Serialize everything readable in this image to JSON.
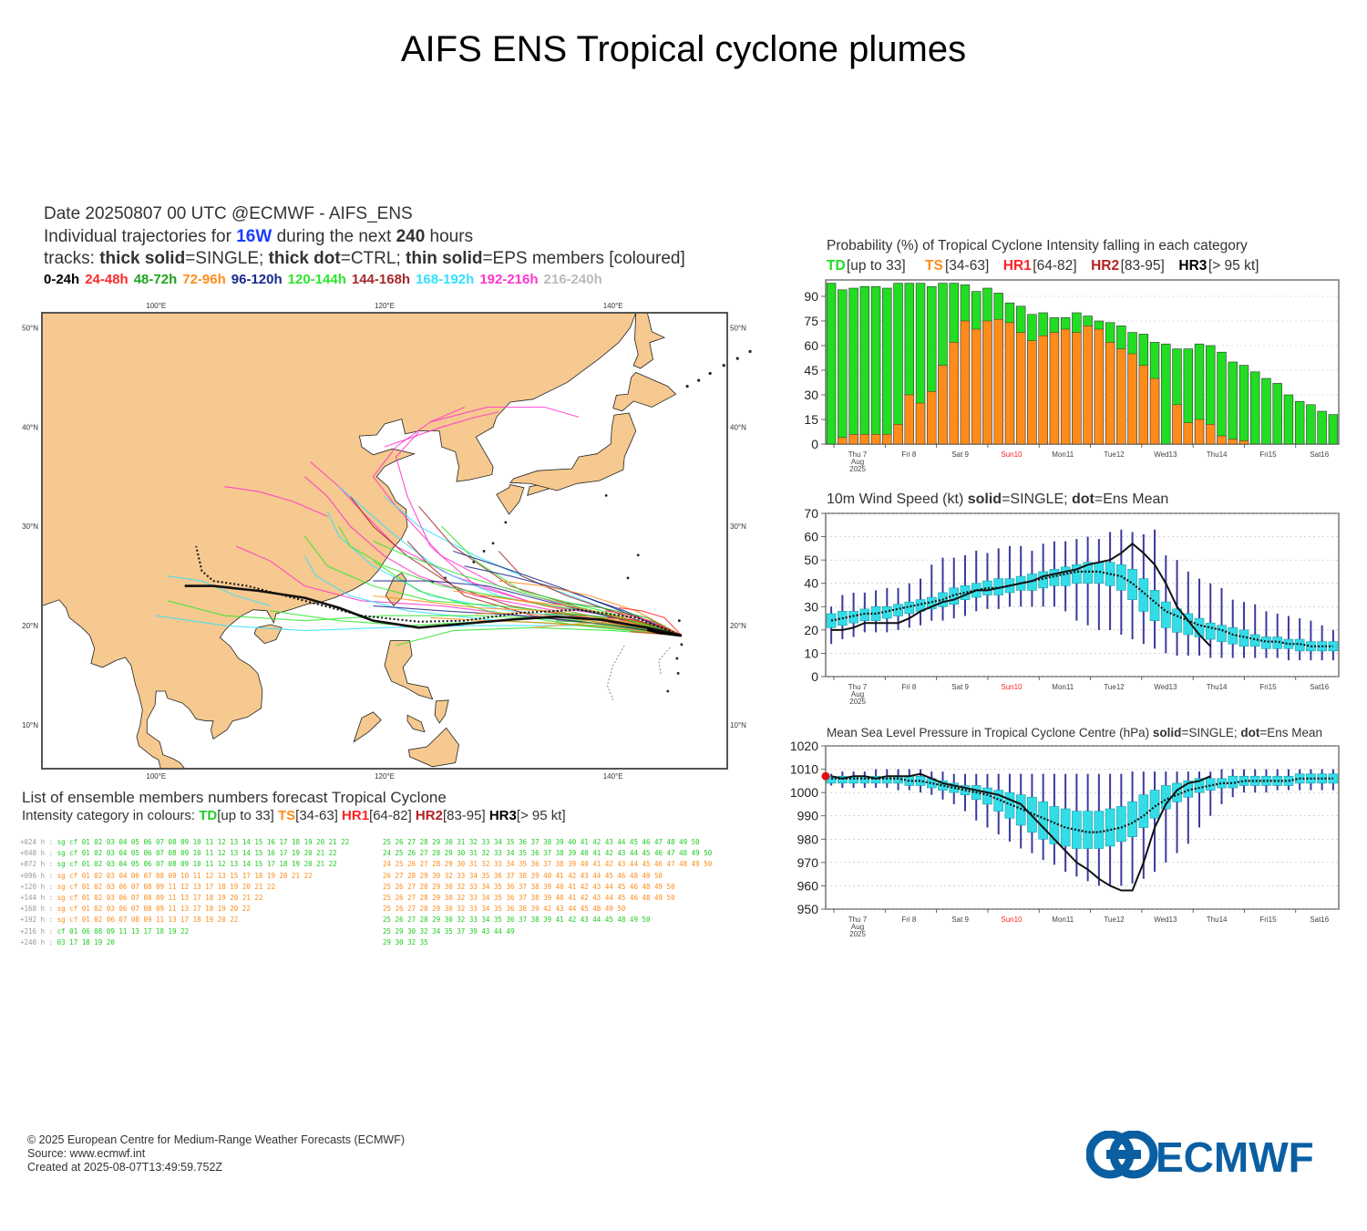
{
  "title": "AIFS ENS Tropical cyclone plumes",
  "map_header": {
    "line1": "Date 20250807 00 UTC   @ECMWF - AIFS_ENS",
    "line2_pre": "Individual trajectories for",
    "storm": "16W",
    "line2_mid": "during the next",
    "hours": "240",
    "line2_post": "hours",
    "line3_a": "tracks:",
    "line3_b": "thick solid",
    "line3_c": "=SINGLE;",
    "line3_d": "thick dot",
    "line3_e": "=CTRL;",
    "line3_f": "thin solid",
    "line3_g": "=EPS members [coloured]",
    "time_legend": [
      {
        "label": "0-24h",
        "color": "#000000"
      },
      {
        "label": "24-48h",
        "color": "#ff2a2a"
      },
      {
        "label": "48-72h",
        "color": "#1fa31f"
      },
      {
        "label": "72-96h",
        "color": "#ff8c1a"
      },
      {
        "label": "96-120h",
        "color": "#1a2a8c"
      },
      {
        "label": "120-144h",
        "color": "#2ee62e"
      },
      {
        "label": "144-168h",
        "color": "#a52a2a"
      },
      {
        "label": "168-192h",
        "color": "#33e0ff"
      },
      {
        "label": "192-216h",
        "color": "#ff33cc"
      },
      {
        "label": "216-240h",
        "color": "#bbbbbb"
      }
    ]
  },
  "map": {
    "lon_labels": [
      "100°E",
      "120°E",
      "140°E"
    ],
    "lat_labels": [
      "50°N",
      "40°N",
      "30°N",
      "20°N",
      "10°N"
    ],
    "land_color": "#f5c98f",
    "sea_color": "#ffffff"
  },
  "members_list": {
    "title": "List of ensemble members numbers forecast Tropical Cyclone",
    "legend_pre": "Intensity category in colours:",
    "categories": [
      {
        "code": "TD",
        "range": "[up to 33]",
        "color": "#22cc22"
      },
      {
        "code": "TS",
        "range": "[34-63]",
        "color": "#ff8c1a"
      },
      {
        "code": "HR1",
        "range": "[64-82]",
        "color": "#ff2222"
      },
      {
        "code": "HR2",
        "range": "[83-95]",
        "color": "#b22222"
      },
      {
        "code": "HR3",
        "range": "[> 95 kt]",
        "color": "#000000"
      }
    ],
    "rows": [
      {
        "step": "+024 h :",
        "a": "sg cf 01 02 03 04 05 06 07 08 09 10 11 12 13 14 15 16 17 18 19 20 21 22",
        "b": "25 26 27 28 29 30 31 32 33 34 35 36 37 38 39 40 41 42 43 44 45 46 47 48 49 50",
        "ca": "#22cc22",
        "cb": "#22cc22"
      },
      {
        "step": "+048 h :",
        "a": "sg cf 01 02 03 04 05 06 07 08 09 10 11 12 13 14 15 16 17    19 20 21 22",
        "b": "24 25 26 27 28 29 30 31 32 33 34 35 36 37 38 39 40 41 42 43 44 45 46 47 48 49 50",
        "ca": "#22cc22",
        "cb": "#22cc22"
      },
      {
        "step": "+072 h :",
        "a": "sg cf 01 02 03 04 05 06 07 08 09 10 11 12 13 14 15    17 18 19 20 21 22",
        "b": "24 25 26 27 28 29 30 31 32 33 34 35 36 37 38 39 40 41 42 43 44 45 46 47 48 49 50",
        "ca": "#22cc22",
        "cb": "#ff8c1a"
      },
      {
        "step": "+096 h :",
        "a": "sg cf 01 02 03 04    06 07 08 09 10 11 12 13    15    17 18 19 20 21 22",
        "b": "26 27 28 29 30    32 33 34 35 36 37 38 39 40 41 42 43 44 45 46    48 49 50",
        "ca": "#ff8c1a",
        "cb": "#ff8c1a"
      },
      {
        "step": "+120 h :",
        "a": "sg cf 01 02 03    06 07 08 09    11 12 13       17 18 19 20 21 22",
        "b": "25 26 27 28 29 30    32 33 34 35 36 37 38 39 40 41 42 43 44 45 46    48 49 50",
        "ca": "#ff8c1a",
        "cb": "#ff8c1a"
      },
      {
        "step": "+144 h :",
        "a": "sg cf 01 02 03    06 07 08 09    11    13       17 18 19 20 21 22",
        "b": "25 26 27 28 29 30    32 33 34 35 36 37 38 39 40 41 42 43 44 45 46    48 49 50",
        "ca": "#ff8c1a",
        "cb": "#ff8c1a"
      },
      {
        "step": "+168 h :",
        "a": "sg cf 01 02 03    06 07 08 09    11    13       17 18 19 20    22",
        "b": "25 26 27 28 29 30    32 33 34 35 36    38 39       42 43 44 45    48 49 50",
        "ca": "#ff8c1a",
        "cb": "#ff8c1a"
      },
      {
        "step": "+192 h :",
        "a": "sg cf 01 02       06 07 08 09    11    13       17 18 19 20    22",
        "b": "25 26 27 28 29 30    32 33 34 35 36 37 38 39    41 42 43 44 45       48 49 50",
        "ca": "#ff8c1a",
        "cb": "#22cc22"
      },
      {
        "step": "+216 h :",
        "a": "   cf 01          06    08 09    11    13       17 18 19       22",
        "b": "25          29 30    32    34 35    37    39       43 44             49",
        "ca": "#22cc22",
        "cb": "#22cc22"
      },
      {
        "step": "+240 h :",
        "a": "         03                                     17 18 19 20",
        "b": "            29 30    32       35",
        "ca": "#22cc22",
        "cb": "#22cc22"
      }
    ]
  },
  "days": [
    "Thu 7\nAug\n2025",
    "Fri 8",
    "Sat 9",
    "Sun10",
    "Mon11",
    "Tue12",
    "Wed13",
    "Thu14",
    "Fri15",
    "Sat16"
  ],
  "chart_data": [
    {
      "type": "bar",
      "title": "Probability (%) of Tropical Cyclone Intensity falling in each category",
      "legend": [
        {
          "code": "TD",
          "range": "[up to 33]",
          "color": "#22dd22"
        },
        {
          "code": "TS",
          "range": "[34-63]",
          "color": "#ff8c1a"
        },
        {
          "code": "HR1",
          "range": "[64-82]",
          "color": "#ff2222"
        },
        {
          "code": "HR2",
          "range": "[83-95]",
          "color": "#b22222"
        },
        {
          "code": "HR3",
          "range": "[> 95 kt]",
          "color": "#000000"
        }
      ],
      "ylim": [
        0,
        100
      ],
      "yticks": [
        0,
        15,
        30,
        45,
        60,
        75,
        90
      ],
      "x_step_hours": 6,
      "series": [
        {
          "name": "TD",
          "color": "#22dd22",
          "values": [
            98,
            94,
            95,
            96,
            96,
            95,
            98,
            98,
            98,
            96,
            98,
            98,
            97,
            93,
            95,
            92,
            86,
            84,
            79,
            80,
            77,
            77,
            80,
            78,
            75,
            74,
            72,
            68,
            67,
            62,
            61,
            58,
            58,
            61,
            60,
            56,
            50,
            48,
            44,
            40,
            37,
            30,
            26,
            24,
            20,
            18
          ]
        },
        {
          "name": "TS",
          "color": "#ff8c1a",
          "values": [
            0,
            4,
            6,
            6,
            6,
            6,
            12,
            30,
            25,
            32,
            48,
            62,
            75,
            70,
            75,
            76,
            74,
            68,
            63,
            66,
            68,
            70,
            68,
            72,
            70,
            62,
            58,
            55,
            48,
            40,
            0,
            24,
            13,
            15,
            12,
            5,
            3,
            2,
            0,
            0,
            0,
            0,
            0,
            0,
            0,
            0
          ]
        }
      ]
    },
    {
      "type": "line",
      "title": "10m Wind Speed (kt) solid=SINGLE; dot=Ens Mean",
      "ylabel": "",
      "ylim": [
        0,
        70
      ],
      "yticks": [
        0,
        10,
        20,
        30,
        40,
        50,
        60,
        70
      ],
      "x_step_hours": 6,
      "series": [
        {
          "name": "SINGLE",
          "values": [
            20,
            20,
            21,
            23,
            23,
            23,
            23,
            25,
            28,
            30,
            32,
            33,
            35,
            37,
            37,
            38,
            39,
            40,
            41,
            43,
            44,
            45,
            46,
            48,
            49,
            50,
            53,
            57,
            53,
            48,
            40,
            30,
            24,
            18,
            13
          ]
        },
        {
          "name": "Ens Mean",
          "values": [
            24,
            25,
            26,
            27,
            27,
            28,
            29,
            30,
            31,
            32,
            33,
            35,
            36,
            37,
            38,
            38,
            39,
            40,
            41,
            42,
            43,
            44,
            45,
            45,
            45,
            44,
            43,
            40,
            36,
            32,
            28,
            26,
            24,
            22,
            21,
            20,
            18,
            17,
            16,
            15,
            15,
            14,
            14,
            13,
            13,
            13
          ]
        }
      ],
      "box_q1": [
        21,
        22,
        23,
        24,
        24,
        25,
        26,
        27,
        28,
        29,
        30,
        31,
        33,
        34,
        35,
        35,
        36,
        37,
        37,
        38,
        39,
        39,
        40,
        40,
        40,
        39,
        37,
        33,
        28,
        24,
        21,
        19,
        18,
        17,
        16,
        15,
        14,
        13,
        13,
        12,
        12,
        12,
        11,
        11,
        11,
        11
      ],
      "box_q3": [
        27,
        28,
        28,
        29,
        30,
        30,
        31,
        32,
        33,
        34,
        36,
        38,
        39,
        40,
        41,
        42,
        42,
        43,
        44,
        45,
        46,
        47,
        48,
        49,
        49,
        49,
        48,
        46,
        42,
        37,
        32,
        29,
        27,
        25,
        23,
        22,
        21,
        20,
        18,
        17,
        17,
        16,
        16,
        15,
        15,
        15
      ],
      "whisk_min": [
        14,
        16,
        17,
        19,
        19,
        19,
        20,
        21,
        22,
        24,
        24,
        25,
        26,
        28,
        29,
        29,
        30,
        30,
        30,
        30,
        30,
        28,
        24,
        22,
        20,
        20,
        18,
        16,
        14,
        12,
        10,
        9,
        9,
        9,
        8,
        8,
        8,
        8,
        8,
        8,
        8,
        7,
        7,
        7,
        7,
        7
      ],
      "whisk_max": [
        30,
        35,
        36,
        36,
        37,
        38,
        38,
        40,
        42,
        48,
        51,
        51,
        52,
        54,
        53,
        55,
        56,
        56,
        54,
        57,
        58,
        58,
        59,
        60,
        59,
        62,
        63,
        62,
        61,
        63,
        52,
        50,
        45,
        42,
        40,
        38,
        33,
        32,
        31,
        28,
        27,
        26,
        25,
        24,
        22,
        20
      ]
    },
    {
      "type": "line",
      "title": "Mean Sea Level Pressure in Tropical Cyclone Centre (hPa) solid=SINGLE; dot=Ens Mean",
      "ylim": [
        950,
        1020
      ],
      "yticks": [
        950,
        960,
        970,
        980,
        990,
        1000,
        1010,
        1020
      ],
      "x_step_hours": 6,
      "series": [
        {
          "name": "SINGLE",
          "values": [
            1007,
            1006,
            1007,
            1007,
            1006,
            1007,
            1007,
            1007,
            1008,
            1006,
            1004,
            1003,
            1002,
            1001,
            1000,
            999,
            997,
            995,
            990,
            985,
            980,
            975,
            970,
            967,
            963,
            960,
            958,
            958,
            970,
            985,
            995,
            1001,
            1004,
            1005,
            1007
          ]
        },
        {
          "name": "Ens Mean",
          "values": [
            1006,
            1006,
            1006,
            1006,
            1006,
            1006,
            1006,
            1005,
            1005,
            1004,
            1003,
            1002,
            1001,
            1000,
            999,
            997,
            995,
            993,
            991,
            989,
            987,
            985,
            984,
            983,
            983,
            984,
            985,
            987,
            990,
            994,
            997,
            999,
            1001,
            1002,
            1003,
            1004,
            1004,
            1005,
            1005,
            1005,
            1005,
            1005,
            1006,
            1006,
            1006,
            1006
          ]
        }
      ],
      "box_q1": [
        1004,
        1004,
        1004,
        1004,
        1004,
        1004,
        1004,
        1003,
        1003,
        1002,
        1001,
        1000,
        999,
        997,
        995,
        992,
        989,
        986,
        983,
        980,
        978,
        977,
        976,
        976,
        976,
        977,
        979,
        981,
        985,
        989,
        993,
        996,
        998,
        1000,
        1001,
        1002,
        1002,
        1003,
        1003,
        1003,
        1003,
        1003,
        1004,
        1004,
        1004,
        1004
      ],
      "box_q3": [
        1007,
        1007,
        1007,
        1007,
        1007,
        1007,
        1007,
        1007,
        1007,
        1006,
        1005,
        1004,
        1003,
        1003,
        1002,
        1001,
        1000,
        999,
        998,
        996,
        994,
        993,
        992,
        992,
        992,
        993,
        994,
        996,
        999,
        1001,
        1003,
        1004,
        1005,
        1006,
        1006,
        1006,
        1007,
        1007,
        1007,
        1007,
        1007,
        1007,
        1008,
        1008,
        1008,
        1008
      ],
      "whisk_min": [
        1003,
        1002,
        1002,
        1002,
        1002,
        1002,
        1001,
        1001,
        1000,
        999,
        997,
        995,
        992,
        988,
        985,
        982,
        979,
        976,
        974,
        971,
        969,
        966,
        964,
        962,
        960,
        960,
        960,
        961,
        963,
        966,
        970,
        974,
        978,
        985,
        990,
        995,
        998,
        1000,
        1000,
        1000,
        1001,
        1001,
        1001,
        1001,
        1001,
        1001
      ],
      "whisk_max": [
        1008,
        1009,
        1009,
        1009,
        1010,
        1010,
        1010,
        1010,
        1010,
        1009,
        1009,
        1008,
        1008,
        1008,
        1008,
        1008,
        1008,
        1008,
        1008,
        1008,
        1008,
        1008,
        1008,
        1008,
        1008,
        1008,
        1008,
        1009,
        1009,
        1009,
        1009,
        1009,
        1009,
        1009,
        1009,
        1010,
        1010,
        1010,
        1010,
        1010,
        1010,
        1010,
        1010,
        1010,
        1010,
        1010
      ]
    }
  ],
  "footer": {
    "line1": "© 2025 European Centre for Medium-Range Weather Forecasts (ECMWF)",
    "line2": "Source: www.ecmwf.int",
    "line3": "Created at 2025-08-07T13:49:59.752Z",
    "logo_text": "ECMWF",
    "logo_color": "#0a5fa3"
  }
}
